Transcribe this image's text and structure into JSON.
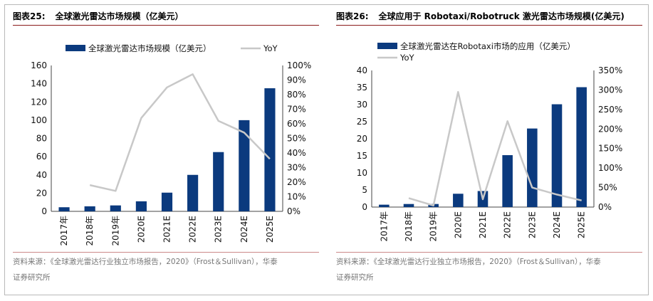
{
  "colors": {
    "bar": "#0b3a7e",
    "line": "#c8c8c8",
    "rule": "#8b1a1a"
  },
  "chart_data": [
    {
      "type": "bar",
      "title_num": "图表25:",
      "title": "全球激光雷达市场规模（亿美元）",
      "categories": [
        "2017年",
        "2018年",
        "2019年",
        "2020E",
        "2021E",
        "2022E",
        "2023E",
        "2024E",
        "2025E"
      ],
      "series": [
        {
          "name": "全球激光雷达市场规模（亿美元）",
          "axis": "left",
          "values": [
            4.5,
            5.5,
            6.5,
            11,
            20.5,
            40,
            65,
            100,
            135
          ]
        },
        {
          "name": "YoY",
          "type": "line",
          "axis": "right",
          "values": [
            null,
            0.18,
            0.14,
            0.64,
            0.85,
            0.94,
            0.62,
            0.54,
            0.36
          ]
        }
      ],
      "ylim": [
        0,
        160
      ],
      "yticks": [
        "0",
        "20",
        "40",
        "60",
        "80",
        "100",
        "120",
        "140",
        "160"
      ],
      "y2lim": [
        0,
        1.0
      ],
      "y2ticks": [
        "0%",
        "10%",
        "20%",
        "30%",
        "40%",
        "50%",
        "60%",
        "70%",
        "80%",
        "90%",
        "100%"
      ],
      "legend": "top",
      "source": "资料来源：《全球激光雷达行业独立市场报告，2020》（Frost＆Sullivan），华泰",
      "source2": "证券研究所"
    },
    {
      "type": "bar",
      "title_num": "图表26:",
      "title": "全球应用于 Robotaxi/Robotruck 激光雷达市场规模(亿美元)",
      "categories": [
        "2017年",
        "2018年",
        "2019年",
        "2020E",
        "2021E",
        "2022E",
        "2023E",
        "2024E",
        "2025E"
      ],
      "series": [
        {
          "name": "全球激光雷达在Robotaxi市场的应用（亿美元）",
          "axis": "left",
          "values": [
            0.7,
            0.9,
            0.9,
            3.9,
            4.7,
            15.2,
            23,
            30.1,
            35.1
          ]
        },
        {
          "name": "YoY",
          "type": "line",
          "axis": "right",
          "values": [
            null,
            0.23,
            0.04,
            2.95,
            0.2,
            2.2,
            0.5,
            0.32,
            0.17
          ]
        }
      ],
      "ylim": [
        0,
        40
      ],
      "yticks": [
        "0",
        "5",
        "10",
        "15",
        "20",
        "25",
        "30",
        "35",
        "40"
      ],
      "y2lim": [
        0,
        3.5
      ],
      "y2ticks": [
        "0%",
        "50%",
        "100%",
        "150%",
        "200%",
        "250%",
        "300%",
        "350%"
      ],
      "legend": "top",
      "source": "资料来源：《全球激光雷达行业独立市场报告，2020》（Frost＆Sullivan），华泰",
      "source2": "证券研究所"
    }
  ]
}
